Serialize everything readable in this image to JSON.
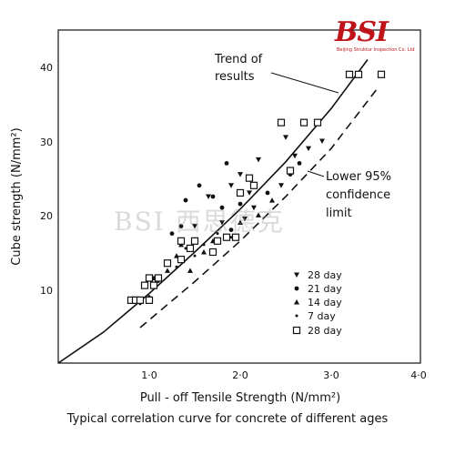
{
  "chart_data": {
    "type": "scatter",
    "xlabel": "Pull - off Tensile Strength (N/mm²)",
    "ylabel": "Cube strength (N/mm²)",
    "xlim": [
      0,
      4.0
    ],
    "ylim": [
      0,
      45
    ],
    "x_ticks": [
      "1·0",
      "2·0",
      "3·0",
      "4·0"
    ],
    "y_ticks": [
      "10",
      "20",
      "30",
      "40"
    ],
    "annotations": [
      "Trend of",
      "results",
      "Lower 95%",
      "confidence",
      "limit"
    ],
    "legend": {
      "placement": "right",
      "entries": [
        "28 day",
        "21 day",
        "14 day",
        "7 day",
        "28 day"
      ]
    },
    "lines": [
      {
        "name": "Trend of results",
        "style": "solid",
        "points": [
          [
            0,
            0
          ],
          [
            0.5,
            4.2
          ],
          [
            1.0,
            9.4
          ],
          [
            1.5,
            15.0
          ],
          [
            2.0,
            20.8
          ],
          [
            2.5,
            27.2
          ],
          [
            3.0,
            34.4
          ],
          [
            3.4,
            41.0
          ]
        ]
      },
      {
        "name": "Lower 95% confidence limit",
        "style": "dashed",
        "points": [
          [
            0.9,
            4.8
          ],
          [
            1.5,
            11.0
          ],
          [
            2.0,
            16.5
          ],
          [
            2.5,
            22.5
          ],
          [
            3.0,
            29.0
          ],
          [
            3.5,
            37.0
          ]
        ]
      }
    ],
    "series": [
      {
        "name": "28 day",
        "marker": "inverted-triangle",
        "points": [
          [
            1.5,
            18.5
          ],
          [
            1.65,
            22.5
          ],
          [
            1.8,
            19.0
          ],
          [
            1.9,
            24.0
          ],
          [
            2.0,
            25.5
          ],
          [
            2.05,
            19.5
          ],
          [
            2.1,
            23.0
          ],
          [
            2.15,
            21.0
          ],
          [
            2.2,
            27.5
          ],
          [
            2.45,
            24.0
          ],
          [
            2.5,
            30.5
          ],
          [
            2.6,
            28.0
          ],
          [
            2.75,
            29.0
          ],
          [
            2.9,
            30.0
          ]
        ]
      },
      {
        "name": "21 day",
        "marker": "dot",
        "points": [
          [
            1.25,
            17.5
          ],
          [
            1.35,
            18.5
          ],
          [
            1.4,
            22.0
          ],
          [
            1.55,
            24.0
          ],
          [
            1.7,
            22.5
          ],
          [
            1.8,
            21.0
          ],
          [
            1.85,
            27.0
          ],
          [
            1.9,
            18.0
          ],
          [
            2.0,
            21.5
          ],
          [
            2.3,
            23.0
          ],
          [
            2.55,
            25.5
          ],
          [
            2.65,
            27.0
          ]
        ]
      },
      {
        "name": "14 day",
        "marker": "triangle",
        "points": [
          [
            1.05,
            11.5
          ],
          [
            1.2,
            12.5
          ],
          [
            1.3,
            14.5
          ],
          [
            1.35,
            16.0
          ],
          [
            1.45,
            12.5
          ],
          [
            1.6,
            15.0
          ],
          [
            1.7,
            16.5
          ],
          [
            1.85,
            17.0
          ],
          [
            2.0,
            19.0
          ],
          [
            2.2,
            20.0
          ],
          [
            2.35,
            22.0
          ]
        ]
      },
      {
        "name": "7 day",
        "marker": "small-dot",
        "points": [
          [
            0.9,
            8.0
          ],
          [
            1.0,
            9.0
          ],
          [
            1.1,
            11.0
          ],
          [
            1.2,
            13.5
          ],
          [
            1.3,
            13.0
          ],
          [
            1.4,
            15.5
          ],
          [
            1.5,
            14.5
          ],
          [
            1.6,
            16.0
          ],
          [
            1.75,
            17.5
          ],
          [
            1.9,
            17.0
          ]
        ]
      },
      {
        "name": "28 day",
        "marker": "square",
        "points": [
          [
            0.8,
            8.5
          ],
          [
            0.85,
            8.5
          ],
          [
            0.9,
            8.5
          ],
          [
            0.95,
            10.5
          ],
          [
            1.0,
            11.5
          ],
          [
            1.0,
            8.5
          ],
          [
            1.05,
            10.5
          ],
          [
            1.1,
            11.5
          ],
          [
            1.2,
            13.5
          ],
          [
            1.35,
            14.0
          ],
          [
            1.35,
            16.5
          ],
          [
            1.45,
            15.5
          ],
          [
            1.5,
            16.5
          ],
          [
            1.7,
            15.0
          ],
          [
            1.75,
            16.5
          ],
          [
            1.85,
            17.0
          ],
          [
            1.95,
            17.0
          ],
          [
            2.0,
            23.0
          ],
          [
            2.1,
            25.0
          ],
          [
            2.15,
            24.0
          ],
          [
            2.45,
            32.5
          ],
          [
            2.55,
            26.0
          ],
          [
            2.7,
            32.5
          ],
          [
            2.85,
            32.5
          ],
          [
            3.2,
            39.0
          ],
          [
            3.3,
            39.0
          ],
          [
            3.55,
            39.0
          ]
        ]
      }
    ]
  },
  "caption": "Typical correlation curve for concrete of different ages",
  "logo": {
    "text": "BSI",
    "subtext": "Beijing Struktur Inspection Co. Ltd",
    "color": "#c0141b"
  },
  "watermark": "BSI 西思德克"
}
